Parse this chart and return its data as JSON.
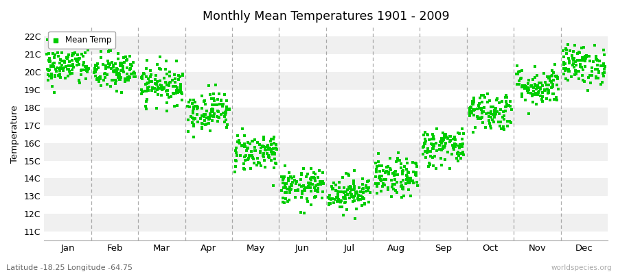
{
  "title": "Monthly Mean Temperatures 1901 - 2009",
  "ylabel": "Temperature",
  "xlabel_labels": [
    "Jan",
    "Feb",
    "Mar",
    "Apr",
    "May",
    "Jun",
    "Jul",
    "Aug",
    "Sep",
    "Oct",
    "Nov",
    "Dec"
  ],
  "ytick_labels": [
    "11C",
    "12C",
    "13C",
    "14C",
    "15C",
    "16C",
    "17C",
    "18C",
    "19C",
    "20C",
    "21C",
    "22C"
  ],
  "ytick_values": [
    11,
    12,
    13,
    14,
    15,
    16,
    17,
    18,
    19,
    20,
    21,
    22
  ],
  "ylim": [
    10.5,
    22.5
  ],
  "marker_color": "#00cc00",
  "legend_label": "Mean Temp",
  "footer_left": "Latitude -18.25 Longitude -64.75",
  "footer_right": "worldspecies.org",
  "background_color": "#ffffff",
  "monthly_means": [
    20.3,
    20.0,
    19.3,
    17.8,
    15.5,
    13.5,
    13.2,
    14.0,
    15.8,
    17.8,
    19.2,
    20.4
  ],
  "monthly_stds": [
    0.55,
    0.55,
    0.55,
    0.55,
    0.55,
    0.5,
    0.5,
    0.55,
    0.55,
    0.55,
    0.55,
    0.55
  ],
  "n_years": 109,
  "band_colors_even": "#f0f0f0",
  "band_colors_odd": "#ffffff",
  "dashed_line_color": "#777777"
}
